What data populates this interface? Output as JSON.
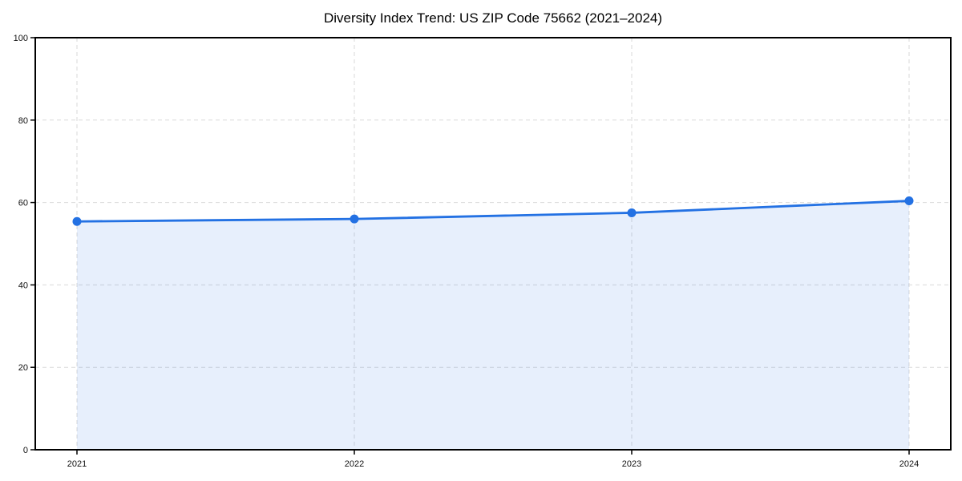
{
  "chart_data": {
    "type": "area",
    "title": "Diversity Index Trend: US ZIP Code 75662 (2021–2024)",
    "categories": [
      "2021",
      "2022",
      "2023",
      "2024"
    ],
    "values": [
      55.4,
      56.0,
      57.5,
      60.4
    ],
    "xlabel": "",
    "ylabel": "",
    "ylim": [
      0,
      100
    ],
    "yticks": [
      0,
      20,
      40,
      60,
      80,
      100
    ],
    "grid": "dashed",
    "legend": "none",
    "colors": {
      "line": "#2371e3",
      "marker": "#2371e3",
      "fill": "rgba(35, 113, 227, 0.11)",
      "grid": "#d9d9d9",
      "axis": "#000000",
      "tick_label": "#111111",
      "background": "#ffffff"
    }
  }
}
